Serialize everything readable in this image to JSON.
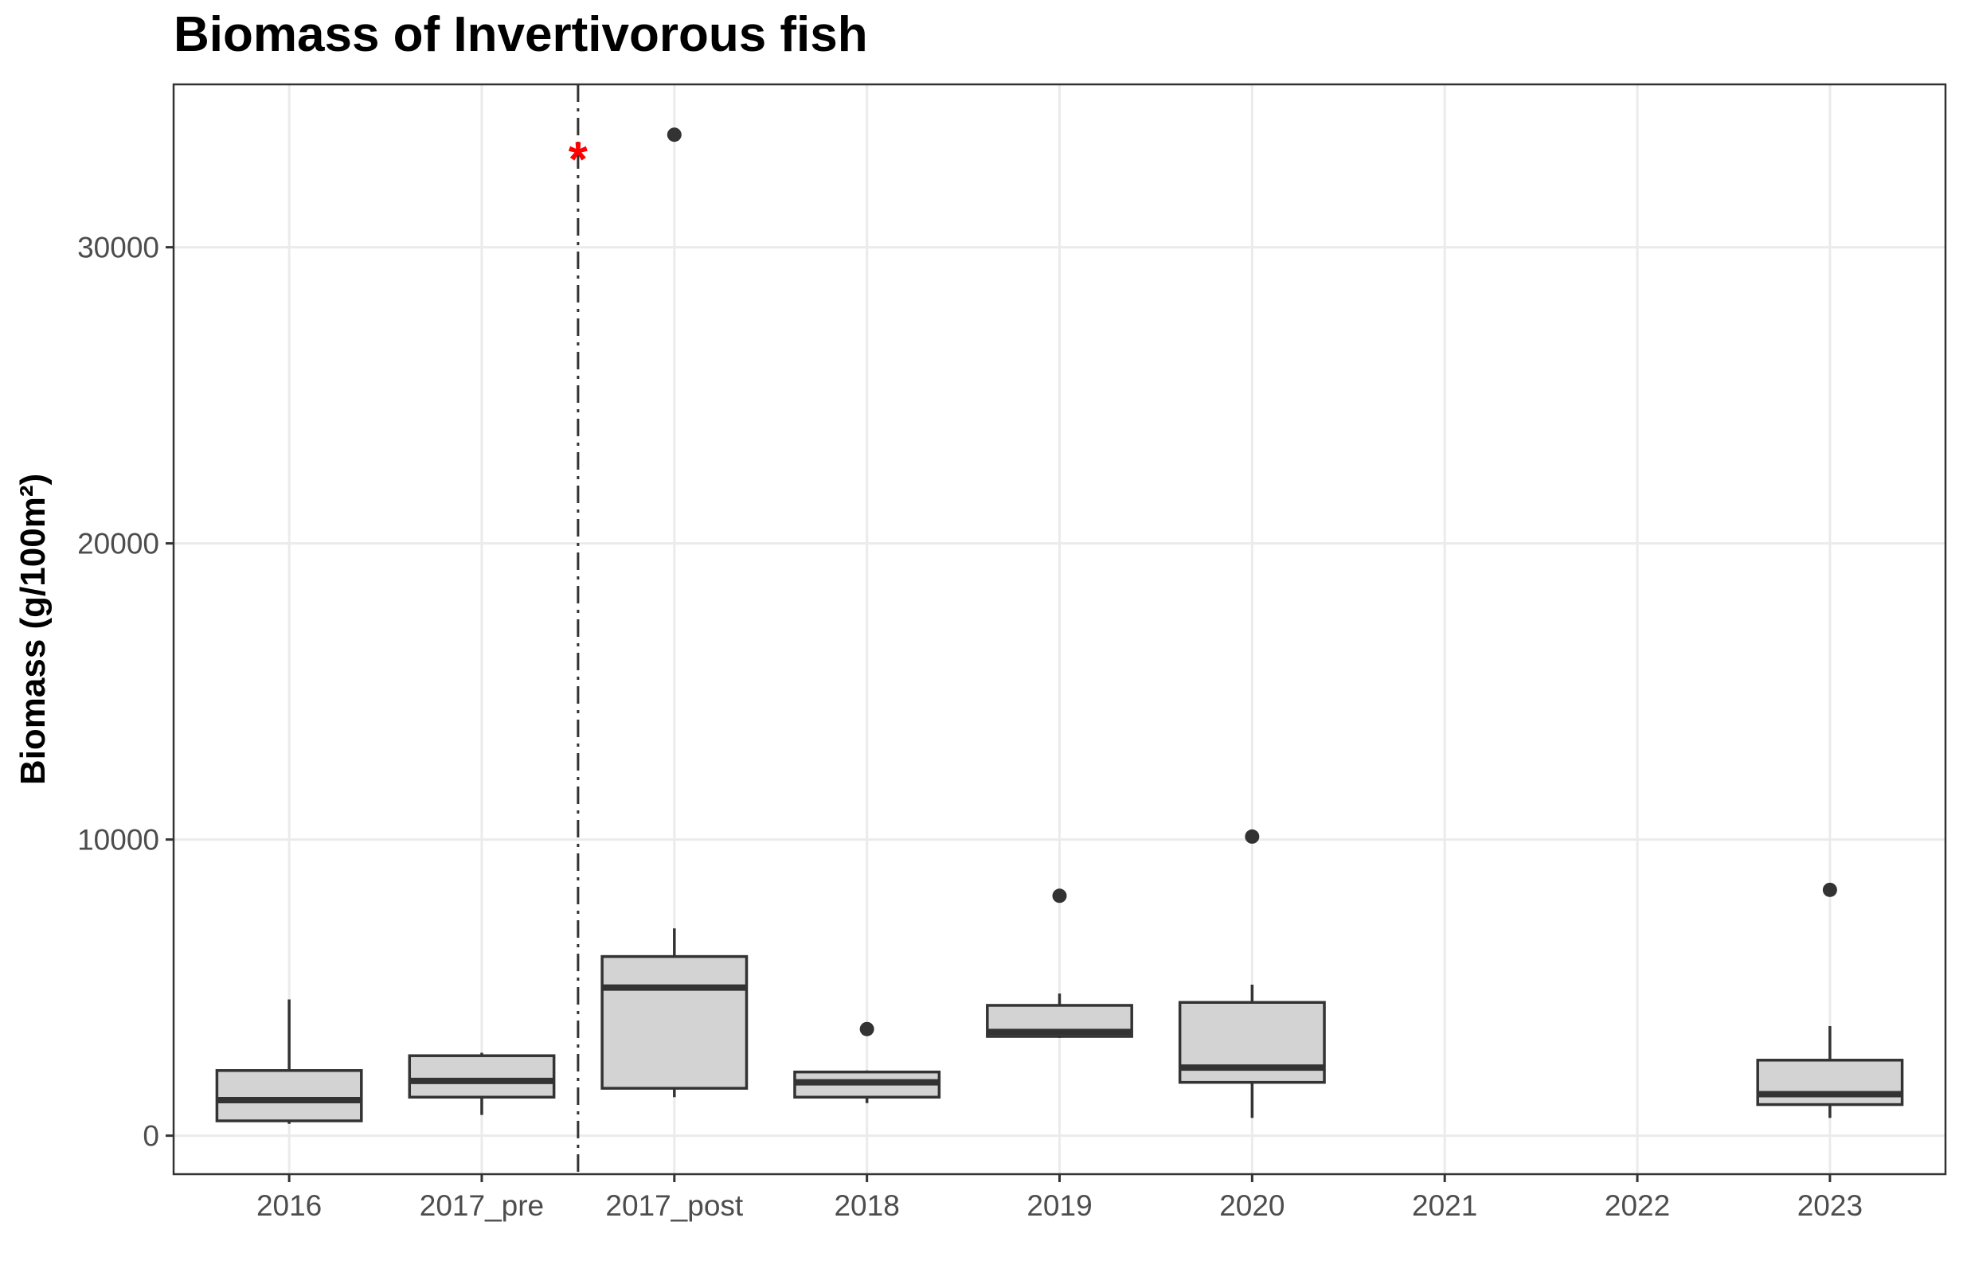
{
  "chart_data": {
    "type": "box",
    "title": "Biomass of Invertivorous fish",
    "xlabel": "",
    "ylabel": "Biomass (g/100m²)",
    "categories": [
      "2016",
      "2017_pre",
      "2017_post",
      "2018",
      "2019",
      "2020",
      "2021",
      "2022",
      "2023"
    ],
    "ylim": [
      -1300,
      35500
    ],
    "yticks": [
      0,
      10000,
      20000,
      30000
    ],
    "boxes": [
      {
        "category": "2016",
        "min": 400,
        "q1": 500,
        "median": 1200,
        "q3": 2200,
        "max": 4600,
        "outliers": []
      },
      {
        "category": "2017_pre",
        "min": 700,
        "q1": 1300,
        "median": 1850,
        "q3": 2700,
        "max": 2800,
        "outliers": []
      },
      {
        "category": "2017_post",
        "min": 1300,
        "q1": 1600,
        "median": 5000,
        "q3": 6050,
        "max": 7000,
        "outliers": [
          33800
        ]
      },
      {
        "category": "2018",
        "min": 1100,
        "q1": 1300,
        "median": 1800,
        "q3": 2150,
        "max": 2200,
        "outliers": [
          3600
        ]
      },
      {
        "category": "2019",
        "min": 3300,
        "q1": 3350,
        "median": 3500,
        "q3": 4400,
        "max": 4800,
        "outliers": [
          8100
        ]
      },
      {
        "category": "2020",
        "min": 600,
        "q1": 1800,
        "median": 2300,
        "q3": 4500,
        "max": 5100,
        "outliers": [
          10100
        ]
      },
      {
        "category": "2023",
        "min": 600,
        "q1": 1050,
        "median": 1400,
        "q3": 2550,
        "max": 3700,
        "outliers": [
          8300
        ]
      }
    ],
    "reference_line": {
      "between": [
        "2017_pre",
        "2017_post"
      ],
      "style": "dashed"
    },
    "annotation": {
      "text": "*",
      "color": "#ff0000",
      "near": "reference_line",
      "y": 33200
    },
    "colors": {
      "box_fill": "#d3d3d3",
      "box_stroke": "#333333",
      "grid": "#ebebeb",
      "panel_border": "#333333"
    },
    "grid": true,
    "legend": "none"
  }
}
